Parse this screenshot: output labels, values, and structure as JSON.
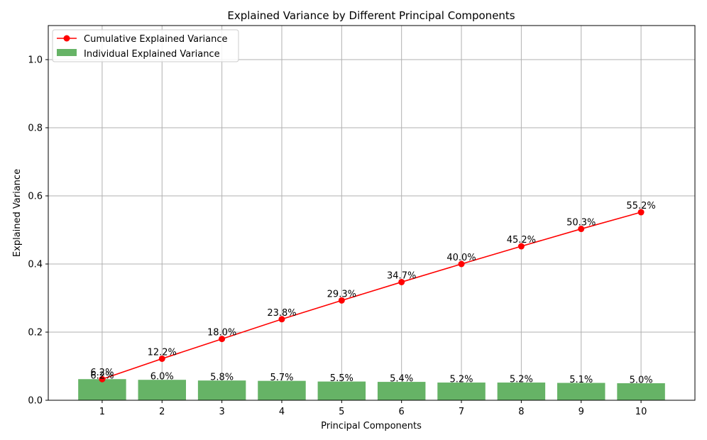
{
  "chart_data": {
    "type": "bar+line",
    "title": "Explained Variance by Different Principal Components",
    "xlabel": "Principal Components",
    "ylabel": "Explained Variance",
    "categories": [
      "1",
      "2",
      "3",
      "4",
      "5",
      "6",
      "7",
      "8",
      "9",
      "10"
    ],
    "x": [
      1,
      2,
      3,
      4,
      5,
      6,
      7,
      8,
      9,
      10
    ],
    "xlim": [
      0.1,
      10.9
    ],
    "ylim": [
      0,
      1.1
    ],
    "yticks": [
      0.0,
      0.2,
      0.4,
      0.6,
      0.8,
      1.0
    ],
    "ytick_labels": [
      "0.0",
      "0.2",
      "0.4",
      "0.6",
      "0.8",
      "1.0"
    ],
    "grid": true,
    "legend_position": "top-left",
    "series": [
      {
        "name": "Cumulative Explained Variance",
        "type": "line",
        "color": "#ff0000",
        "marker": "circle",
        "values": [
          0.062,
          0.122,
          0.18,
          0.238,
          0.293,
          0.347,
          0.4,
          0.452,
          0.503,
          0.552
        ],
        "labels": [
          "6.2%",
          "12.2%",
          "18.0%",
          "23.8%",
          "29.3%",
          "34.7%",
          "40.0%",
          "45.2%",
          "50.3%",
          "55.2%"
        ]
      },
      {
        "name": "Individual Explained Variance",
        "type": "bar",
        "color": "#66b366",
        "values": [
          0.062,
          0.06,
          0.058,
          0.057,
          0.055,
          0.054,
          0.052,
          0.052,
          0.051,
          0.05
        ],
        "labels": [
          "6.2%",
          "6.0%",
          "5.8%",
          "5.7%",
          "5.5%",
          "5.4%",
          "5.2%",
          "5.2%",
          "5.1%",
          "5.0%"
        ]
      }
    ]
  }
}
